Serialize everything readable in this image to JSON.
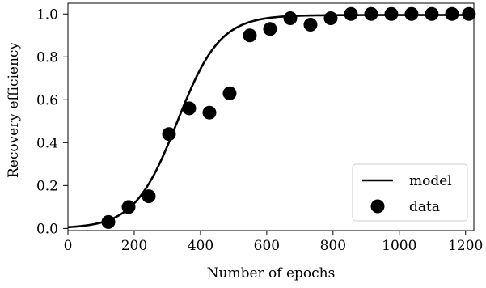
{
  "chart_data": {
    "type": "scatter",
    "xlabel": "Number of epochs",
    "ylabel": "Recovery efficiency",
    "xlim": [
      0,
      1225
    ],
    "ylim": [
      -0.01,
      1.05
    ],
    "xticks": [
      0,
      200,
      400,
      600,
      800,
      1000,
      1200
    ],
    "yticks": [
      0.0,
      0.2,
      0.4,
      0.6,
      0.8,
      1.0
    ],
    "xtick_labels": [
      "0",
      "200",
      "400",
      "600",
      "800",
      "1000",
      "1200"
    ],
    "ytick_labels": [
      "0.0",
      "0.2",
      "0.4",
      "0.6",
      "0.8",
      "1.0"
    ],
    "grid": false,
    "legend": {
      "position": "lower-right",
      "entries": [
        {
          "label": "model",
          "marker": "line"
        },
        {
          "label": "data",
          "marker": "circle"
        }
      ]
    },
    "series": [
      {
        "name": "data",
        "kind": "scatter",
        "x": [
          122,
          183,
          244,
          305,
          366,
          427,
          488,
          549,
          610,
          671,
          732,
          793,
          854,
          915,
          976,
          1037,
          1098,
          1159,
          1210
        ],
        "y": [
          0.03,
          0.1,
          0.15,
          0.44,
          0.56,
          0.54,
          0.63,
          0.9,
          0.93,
          0.98,
          0.95,
          0.98,
          1.0,
          1.0,
          1.0,
          1.0,
          1.0,
          1.0,
          1.0
        ]
      },
      {
        "name": "model",
        "kind": "line",
        "model": {
          "form": "logistic",
          "L": 0.995,
          "k": 0.0155,
          "x0": 330
        }
      }
    ],
    "colors": {
      "marks": "#000000",
      "legend_border": "#cccccc"
    }
  }
}
